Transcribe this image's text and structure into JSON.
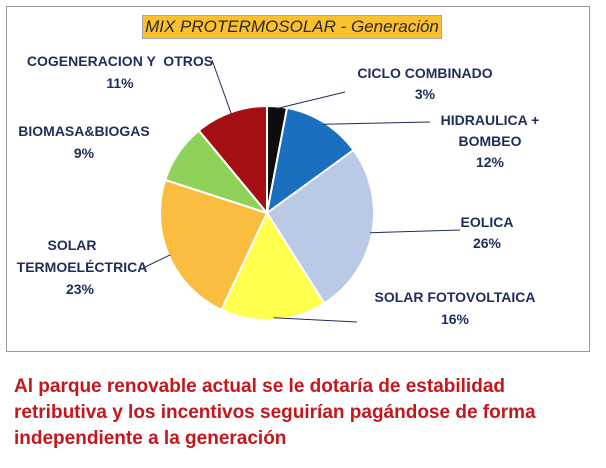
{
  "chart_data": {
    "type": "pie",
    "title": "MIX PROTERMOSOLAR - Generación",
    "slices": [
      {
        "name": "CICLO COMBINADO",
        "value": 3,
        "label": "3%",
        "color": "#0d0d0d"
      },
      {
        "name": "HIDRAULICA + BOMBEO",
        "value": 12,
        "label": "12%",
        "color": "#1a6fbf"
      },
      {
        "name": "EOLICA",
        "value": 26,
        "label": "26%",
        "color": "#b9c9e6"
      },
      {
        "name": "SOLAR FOTOVOLTAICA",
        "value": 16,
        "label": "16%",
        "color": "#ffff4d"
      },
      {
        "name": "SOLAR TERMOELÉCTRICA",
        "value": 23,
        "label": "23%",
        "color": "#fbbd3f"
      },
      {
        "name": "BIOMASA&BIOGAS",
        "value": 9,
        "label": "9%",
        "color": "#8fd25a"
      },
      {
        "name": "COGENERACION Y  OTROS",
        "value": 11,
        "label": "11%",
        "color": "#a50f14"
      }
    ]
  },
  "caption": "Al parque renovable actual se le dotaría de estabilidad retributiva y los incentivos seguirían pagándose de forma independiente a la generación"
}
